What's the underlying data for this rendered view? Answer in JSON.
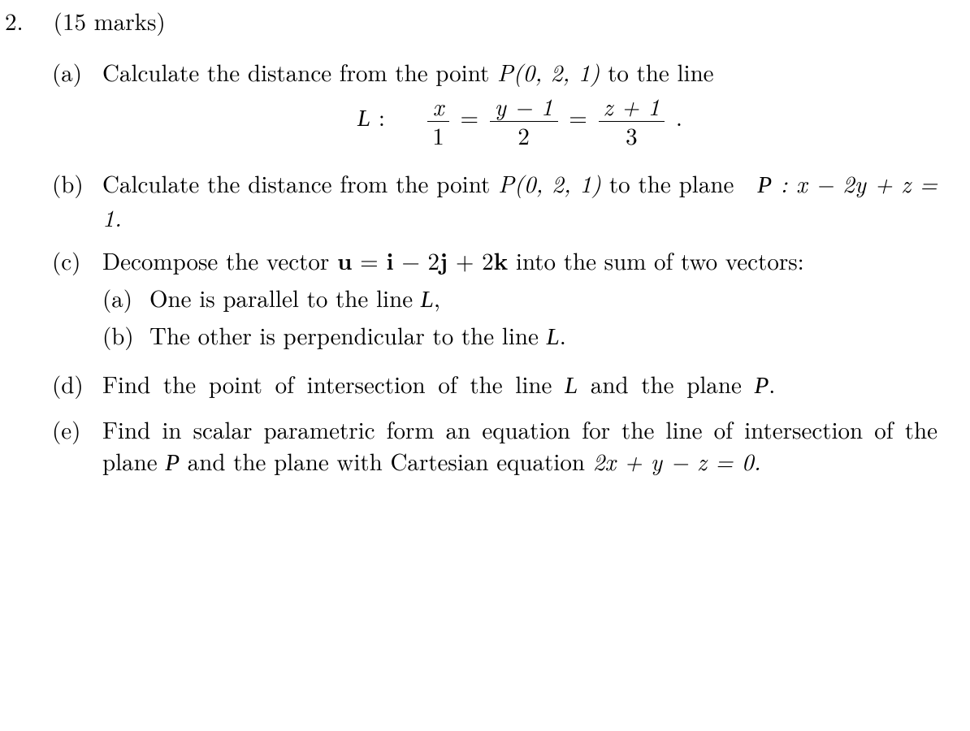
{
  "question_number": "2.",
  "marks_text": "(15 marks)",
  "parts": {
    "a": {
      "label": "(a)",
      "text_before": "Calculate the distance from the point ",
      "point": "P(0, 2, 1)",
      "text_after": " to the line",
      "line_name": "L",
      "eq": {
        "f1_num": "x",
        "f1_den": "1",
        "f2_num": "y − 1",
        "f2_den": "2",
        "f3_num": "z + 1",
        "f3_den": "3"
      }
    },
    "b": {
      "label": "(b)",
      "text_before": "Calculate the distance from the point ",
      "point": "P(0, 2, 1)",
      "text_mid": " to the plane ",
      "plane_name": "P",
      "plane_eq": " : x − 2y + z = 1."
    },
    "c": {
      "label": "(c)",
      "text_before": "Decompose the vector ",
      "vec_u": "u",
      "eq_mid": " = ",
      "vec_expr_i": "i",
      "vec_expr_mid1": " − 2",
      "vec_expr_j": "j",
      "vec_expr_mid2": " + 2",
      "vec_expr_k": "k",
      "text_after": " into the sum of two vectors:",
      "sub_a": {
        "label": "(a)",
        "text_before": "One is parallel to the line ",
        "line_name": "L",
        "text_after": ","
      },
      "sub_b": {
        "label": "(b)",
        "text_before": "The other is perpendicular to the line ",
        "line_name": "L",
        "text_after": "."
      }
    },
    "d": {
      "label": "(d)",
      "text_before": "Find the point of intersection of the line ",
      "line_name": "L",
      "text_mid": " and the plane ",
      "plane_name": "P",
      "text_after": "."
    },
    "e": {
      "label": "(e)",
      "text_before": "Find in scalar parametric form an equation for the line of intersection of the plane ",
      "plane_name": "P",
      "text_mid": " and the plane with Carte­sian equation ",
      "eq": "2x + y − z = 0.",
      "text_after": ""
    }
  }
}
